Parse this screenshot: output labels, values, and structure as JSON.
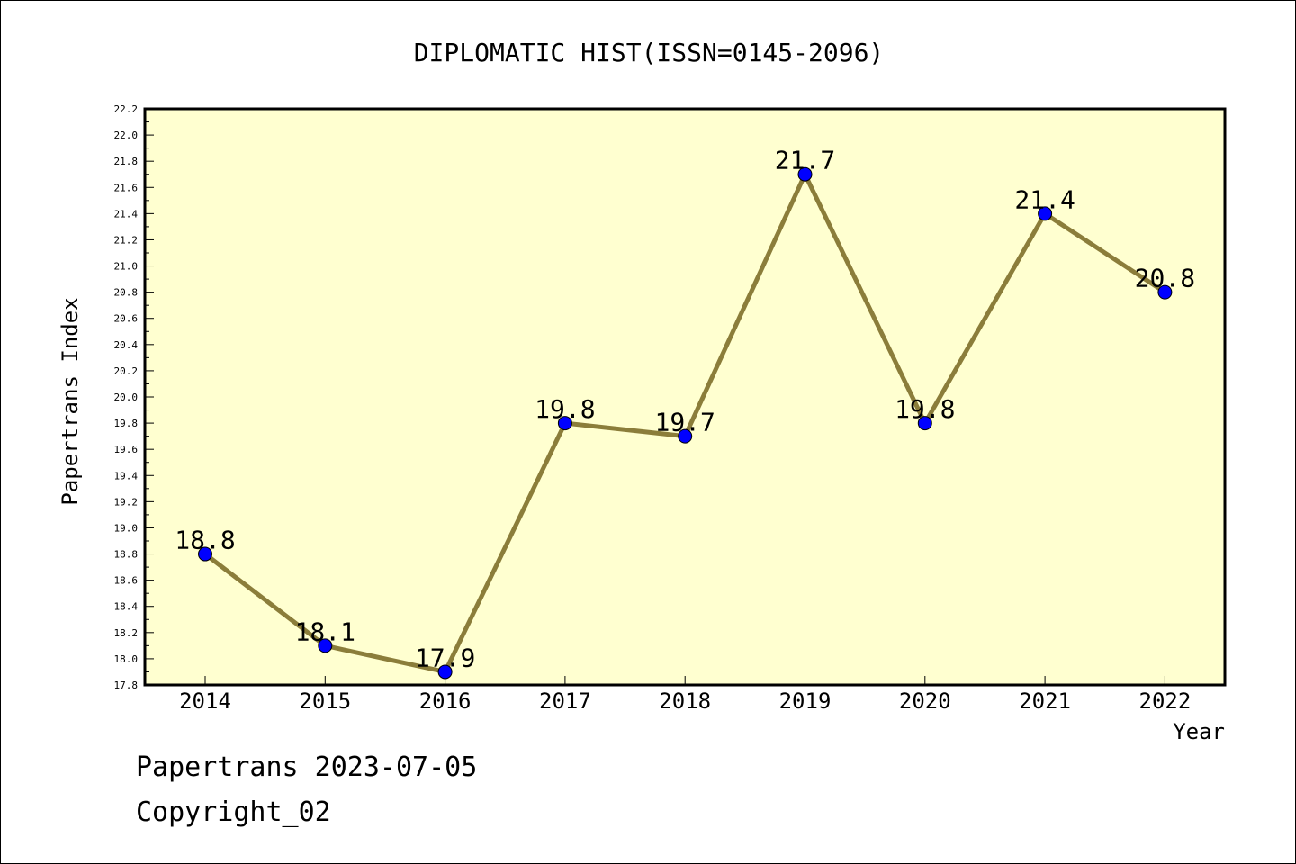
{
  "chart_data": {
    "type": "line",
    "title": "DIPLOMATIC HIST(ISSN=0145-2096)",
    "xlabel": "Year",
    "ylabel": "Papertrans Index",
    "categories": [
      "2014",
      "2015",
      "2016",
      "2017",
      "2018",
      "2019",
      "2020",
      "2021",
      "2022"
    ],
    "values": [
      18.8,
      18.1,
      17.9,
      19.8,
      19.7,
      21.7,
      19.8,
      21.4,
      20.8
    ],
    "data_labels": [
      "18.8",
      "18.1",
      "17.9",
      "19.8",
      "19.7",
      "21.7",
      "19.8",
      "21.4",
      "20.8"
    ],
    "ylim": [
      17.8,
      22.2
    ],
    "yticks": [
      "17.8",
      "18.0",
      "18.2",
      "18.4",
      "18.6",
      "18.8",
      "19.0",
      "19.2",
      "19.4",
      "19.6",
      "19.8",
      "20.0",
      "20.2",
      "20.4",
      "20.6",
      "20.8",
      "21.0",
      "21.2",
      "21.4",
      "21.6",
      "21.8",
      "22.0",
      "22.2"
    ],
    "grid": false,
    "colors": {
      "plot_background": "#ffffd0",
      "line": "#8b7d3a",
      "marker": "#0000ff"
    }
  },
  "footer": {
    "line1": "Papertrans 2023-07-05",
    "line2": "Copyright_02"
  }
}
